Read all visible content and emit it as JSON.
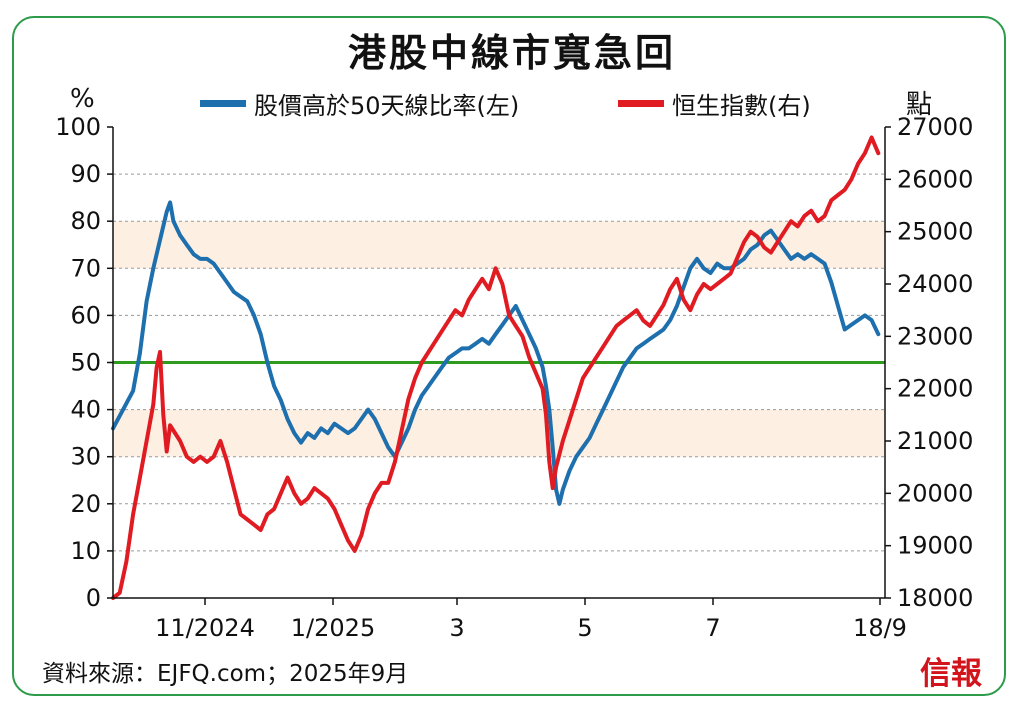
{
  "chart_data": {
    "type": "line",
    "title": "港股中線市寬急回",
    "left_axis": {
      "unit": "%",
      "ylim": [
        0,
        100
      ],
      "ticks": [
        "0",
        "10",
        "20",
        "30",
        "40",
        "50",
        "60",
        "70",
        "80",
        "90",
        "100"
      ]
    },
    "right_axis": {
      "unit": "點",
      "ylim": [
        18000,
        27000
      ],
      "ticks": [
        "18000",
        "19000",
        "20000",
        "21000",
        "22000",
        "23000",
        "24000",
        "25000",
        "26000",
        "27000"
      ]
    },
    "x_ticks": [
      "11/2024",
      "1/2025",
      "3",
      "5",
      "7",
      "18/9"
    ],
    "shaded_bands": [
      [
        30,
        40
      ],
      [
        70,
        80
      ]
    ],
    "reference_line": 50,
    "series": [
      {
        "name": "股價高於50天線比率(左)",
        "axis": "left",
        "color": "#1d6fae",
        "values": [
          [
            0,
            36
          ],
          [
            3,
            40
          ],
          [
            6,
            44
          ],
          [
            8,
            52
          ],
          [
            10,
            63
          ],
          [
            12,
            70
          ],
          [
            14,
            76
          ],
          [
            16,
            82
          ],
          [
            17,
            84
          ],
          [
            18,
            80
          ],
          [
            20,
            77
          ],
          [
            22,
            75
          ],
          [
            24,
            73
          ],
          [
            26,
            72
          ],
          [
            28,
            72
          ],
          [
            30,
            71
          ],
          [
            32,
            69
          ],
          [
            34,
            67
          ],
          [
            36,
            65
          ],
          [
            38,
            64
          ],
          [
            40,
            63
          ],
          [
            42,
            60
          ],
          [
            44,
            56
          ],
          [
            46,
            50
          ],
          [
            48,
            45
          ],
          [
            50,
            42
          ],
          [
            52,
            38
          ],
          [
            54,
            35
          ],
          [
            56,
            33
          ],
          [
            58,
            35
          ],
          [
            60,
            34
          ],
          [
            62,
            36
          ],
          [
            64,
            35
          ],
          [
            66,
            37
          ],
          [
            68,
            36
          ],
          [
            70,
            35
          ],
          [
            72,
            36
          ],
          [
            74,
            38
          ],
          [
            76,
            40
          ],
          [
            78,
            38
          ],
          [
            80,
            35
          ],
          [
            82,
            32
          ],
          [
            84,
            30
          ],
          [
            86,
            33
          ],
          [
            88,
            36
          ],
          [
            90,
            40
          ],
          [
            92,
            43
          ],
          [
            94,
            45
          ],
          [
            96,
            47
          ],
          [
            98,
            49
          ],
          [
            100,
            51
          ],
          [
            102,
            52
          ],
          [
            104,
            53
          ],
          [
            106,
            53
          ],
          [
            108,
            54
          ],
          [
            110,
            55
          ],
          [
            112,
            54
          ],
          [
            114,
            56
          ],
          [
            116,
            58
          ],
          [
            118,
            60
          ],
          [
            120,
            62
          ],
          [
            122,
            59
          ],
          [
            124,
            56
          ],
          [
            126,
            53
          ],
          [
            128,
            49
          ],
          [
            129,
            45
          ],
          [
            130,
            40
          ],
          [
            131,
            32
          ],
          [
            132,
            23
          ],
          [
            133,
            20
          ],
          [
            134,
            23
          ],
          [
            136,
            27
          ],
          [
            138,
            30
          ],
          [
            140,
            32
          ],
          [
            142,
            34
          ],
          [
            144,
            37
          ],
          [
            146,
            40
          ],
          [
            148,
            43
          ],
          [
            150,
            46
          ],
          [
            152,
            49
          ],
          [
            154,
            51
          ],
          [
            156,
            53
          ],
          [
            158,
            54
          ],
          [
            160,
            55
          ],
          [
            162,
            56
          ],
          [
            164,
            57
          ],
          [
            166,
            59
          ],
          [
            168,
            62
          ],
          [
            170,
            66
          ],
          [
            172,
            70
          ],
          [
            174,
            72
          ],
          [
            176,
            70
          ],
          [
            178,
            69
          ],
          [
            180,
            71
          ],
          [
            182,
            70
          ],
          [
            184,
            70
          ],
          [
            186,
            71
          ],
          [
            188,
            72
          ],
          [
            190,
            74
          ],
          [
            192,
            75
          ],
          [
            194,
            77
          ],
          [
            196,
            78
          ],
          [
            198,
            76
          ],
          [
            200,
            74
          ],
          [
            202,
            72
          ],
          [
            204,
            73
          ],
          [
            206,
            72
          ],
          [
            208,
            73
          ],
          [
            210,
            72
          ],
          [
            212,
            71
          ],
          [
            214,
            67
          ],
          [
            216,
            62
          ],
          [
            218,
            57
          ],
          [
            220,
            58
          ],
          [
            222,
            59
          ],
          [
            224,
            60
          ],
          [
            226,
            59
          ],
          [
            228,
            56
          ]
        ]
      },
      {
        "name": "恒生指數(右)",
        "axis": "right",
        "color": "#e01b22",
        "values": [
          [
            0,
            18000
          ],
          [
            2,
            18100
          ],
          [
            4,
            18700
          ],
          [
            6,
            19600
          ],
          [
            8,
            20300
          ],
          [
            10,
            21000
          ],
          [
            12,
            21700
          ],
          [
            13,
            22400
          ],
          [
            14,
            22700
          ],
          [
            15,
            21500
          ],
          [
            16,
            20800
          ],
          [
            17,
            21300
          ],
          [
            18,
            21200
          ],
          [
            20,
            21000
          ],
          [
            22,
            20700
          ],
          [
            24,
            20600
          ],
          [
            26,
            20700
          ],
          [
            28,
            20600
          ],
          [
            30,
            20700
          ],
          [
            32,
            21000
          ],
          [
            34,
            20600
          ],
          [
            36,
            20100
          ],
          [
            38,
            19600
          ],
          [
            40,
            19500
          ],
          [
            42,
            19400
          ],
          [
            44,
            19300
          ],
          [
            46,
            19600
          ],
          [
            48,
            19700
          ],
          [
            50,
            20000
          ],
          [
            52,
            20300
          ],
          [
            54,
            20000
          ],
          [
            56,
            19800
          ],
          [
            58,
            19900
          ],
          [
            60,
            20100
          ],
          [
            62,
            20000
          ],
          [
            64,
            19900
          ],
          [
            66,
            19700
          ],
          [
            68,
            19400
          ],
          [
            70,
            19100
          ],
          [
            72,
            18900
          ],
          [
            74,
            19200
          ],
          [
            76,
            19700
          ],
          [
            78,
            20000
          ],
          [
            80,
            20200
          ],
          [
            82,
            20200
          ],
          [
            84,
            20600
          ],
          [
            86,
            21200
          ],
          [
            88,
            21800
          ],
          [
            90,
            22200
          ],
          [
            92,
            22500
          ],
          [
            94,
            22700
          ],
          [
            96,
            22900
          ],
          [
            98,
            23100
          ],
          [
            100,
            23300
          ],
          [
            102,
            23500
          ],
          [
            104,
            23400
          ],
          [
            106,
            23700
          ],
          [
            108,
            23900
          ],
          [
            110,
            24100
          ],
          [
            112,
            23900
          ],
          [
            114,
            24300
          ],
          [
            116,
            24000
          ],
          [
            118,
            23400
          ],
          [
            120,
            23200
          ],
          [
            122,
            23000
          ],
          [
            124,
            22600
          ],
          [
            126,
            22300
          ],
          [
            128,
            22000
          ],
          [
            129,
            21500
          ],
          [
            130,
            20600
          ],
          [
            131,
            20100
          ],
          [
            132,
            20500
          ],
          [
            134,
            21000
          ],
          [
            136,
            21400
          ],
          [
            138,
            21800
          ],
          [
            140,
            22200
          ],
          [
            142,
            22400
          ],
          [
            144,
            22600
          ],
          [
            146,
            22800
          ],
          [
            148,
            23000
          ],
          [
            150,
            23200
          ],
          [
            152,
            23300
          ],
          [
            154,
            23400
          ],
          [
            156,
            23500
          ],
          [
            158,
            23300
          ],
          [
            160,
            23200
          ],
          [
            162,
            23400
          ],
          [
            164,
            23600
          ],
          [
            166,
            23900
          ],
          [
            168,
            24100
          ],
          [
            170,
            23700
          ],
          [
            172,
            23500
          ],
          [
            174,
            23800
          ],
          [
            176,
            24000
          ],
          [
            178,
            23900
          ],
          [
            180,
            24000
          ],
          [
            182,
            24100
          ],
          [
            184,
            24200
          ],
          [
            186,
            24500
          ],
          [
            188,
            24800
          ],
          [
            190,
            25000
          ],
          [
            192,
            24900
          ],
          [
            194,
            24700
          ],
          [
            196,
            24600
          ],
          [
            198,
            24800
          ],
          [
            200,
            25000
          ],
          [
            202,
            25200
          ],
          [
            204,
            25100
          ],
          [
            206,
            25300
          ],
          [
            208,
            25400
          ],
          [
            210,
            25200
          ],
          [
            212,
            25300
          ],
          [
            214,
            25600
          ],
          [
            216,
            25700
          ],
          [
            218,
            25800
          ],
          [
            220,
            26000
          ],
          [
            222,
            26300
          ],
          [
            224,
            26500
          ],
          [
            226,
            26800
          ],
          [
            228,
            26500
          ]
        ]
      }
    ]
  },
  "legend": {
    "left_series": "股價高於50天線比率(左)",
    "right_series": "恒生指數(右)"
  },
  "source": "資料來源：EJFQ.com；2025年9月",
  "brand": "信報"
}
